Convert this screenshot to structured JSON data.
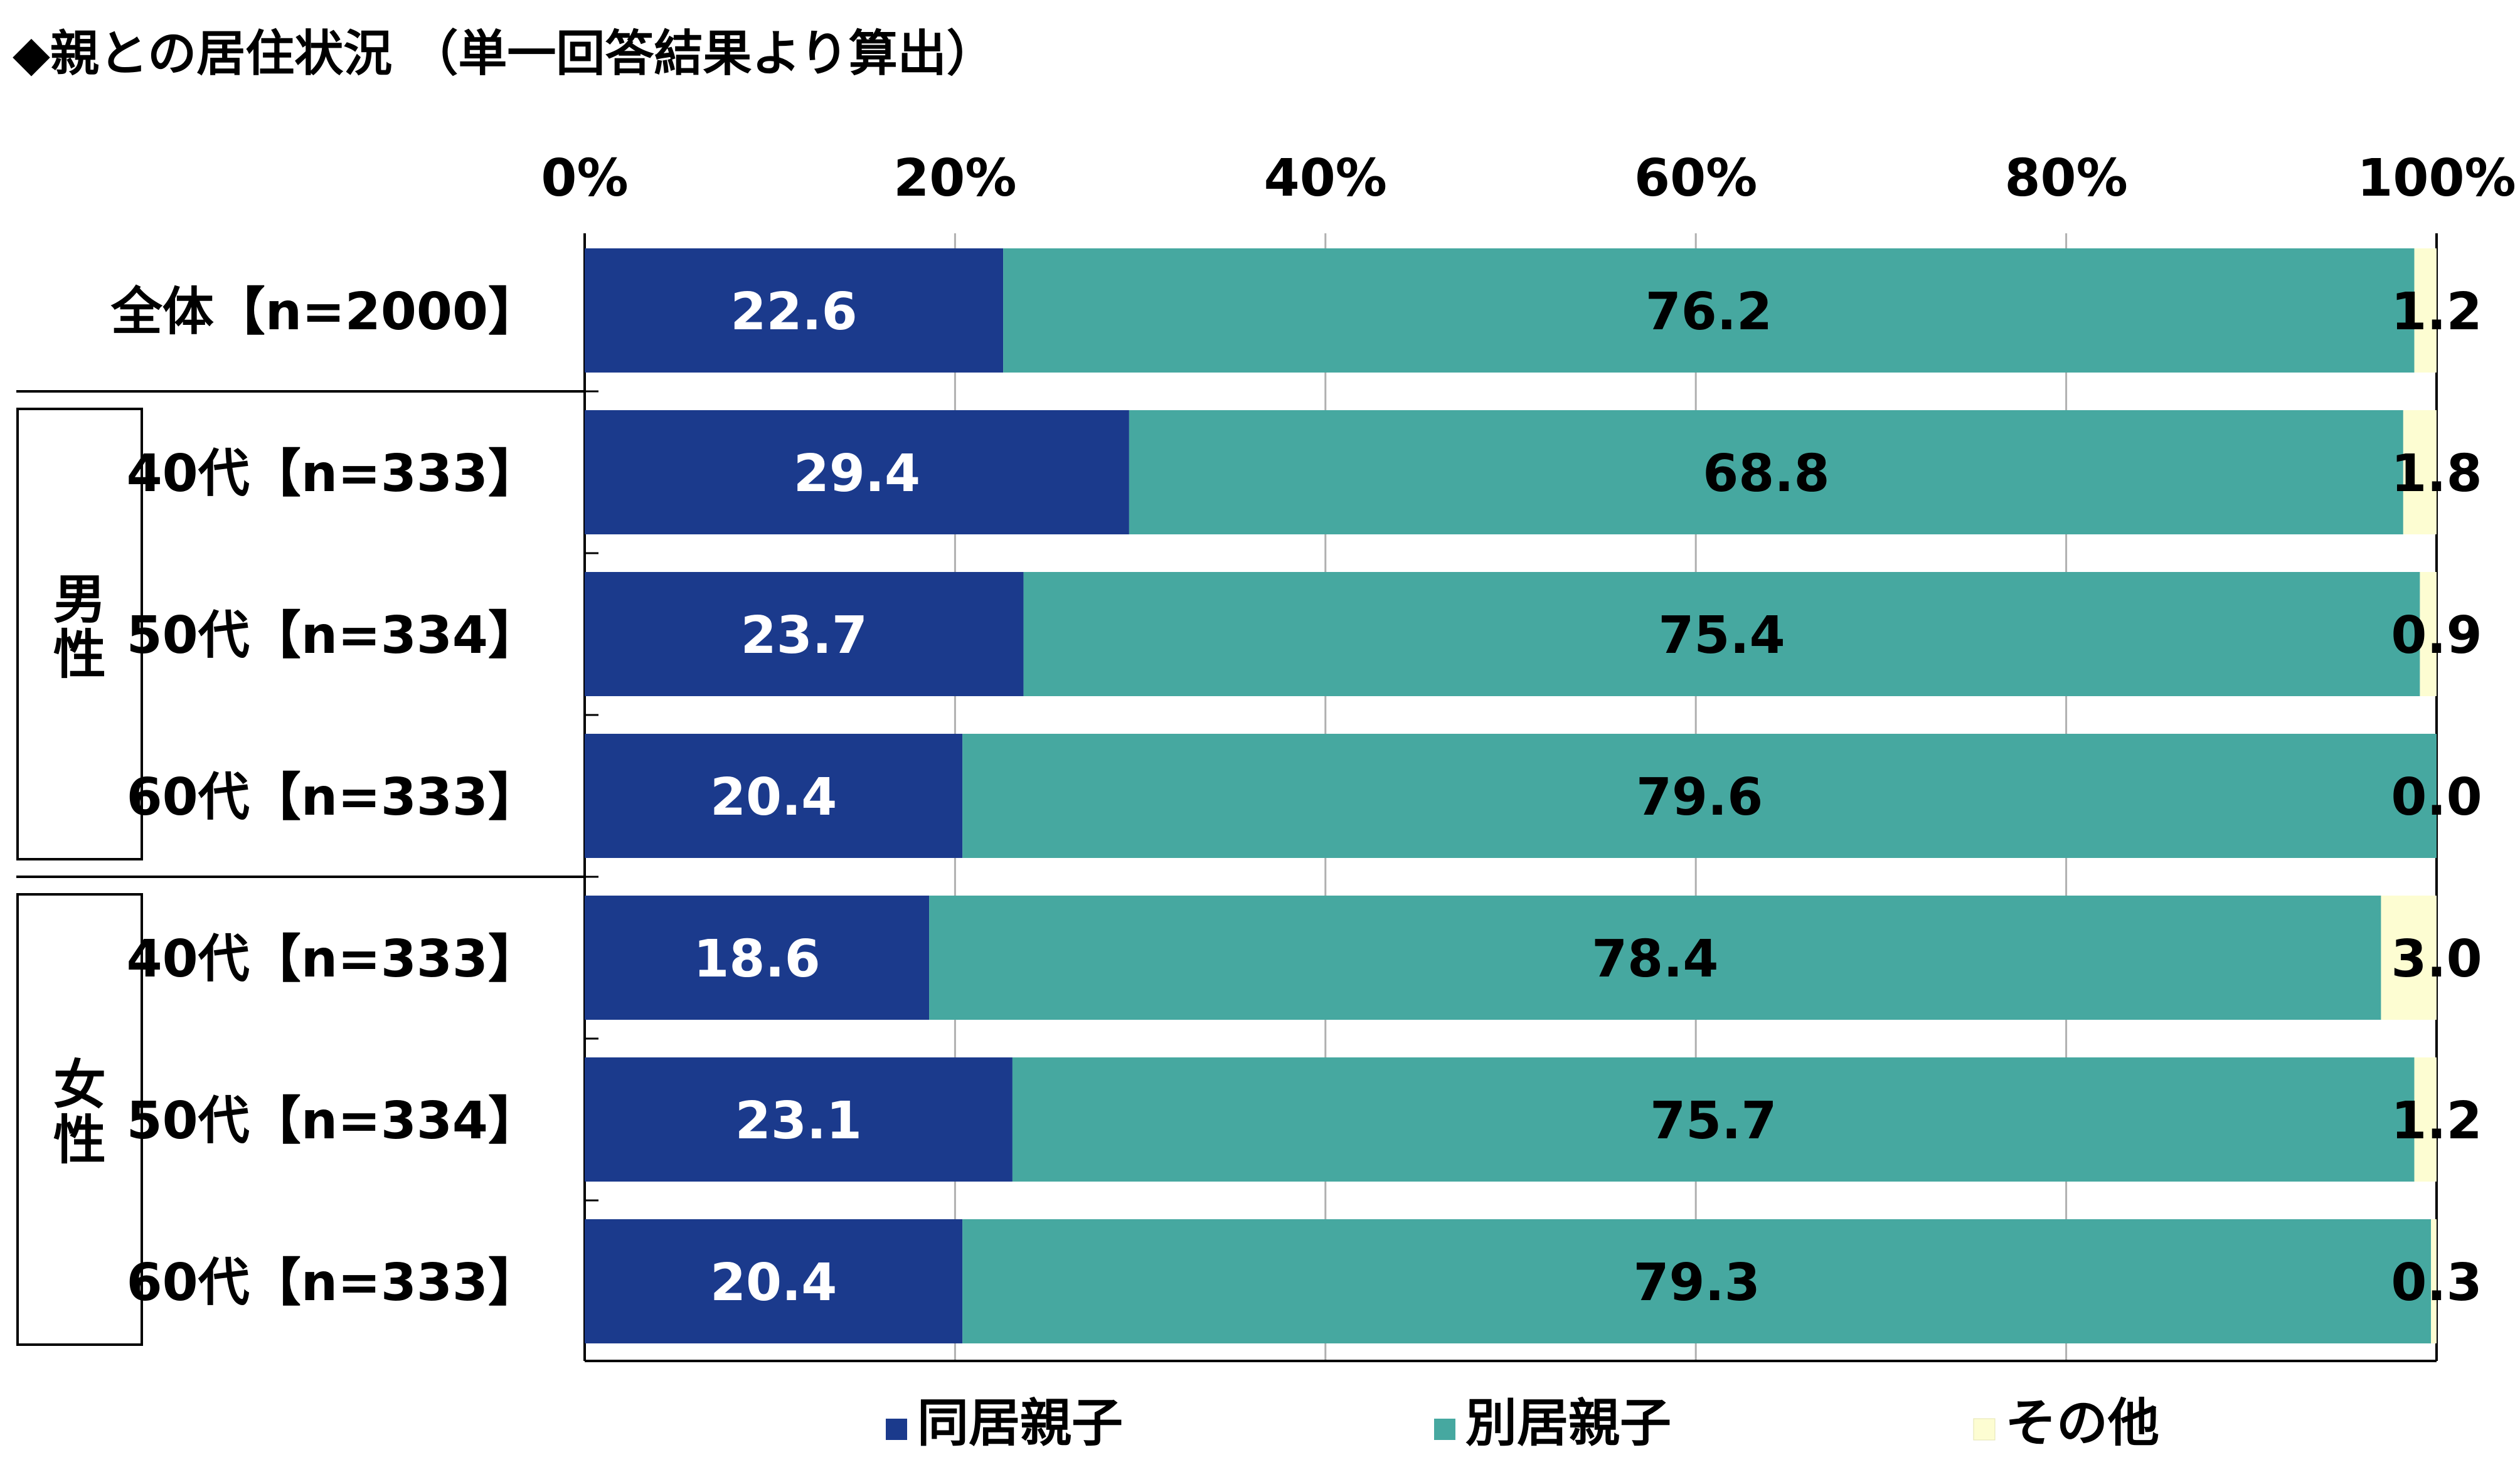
{
  "title": "◆親との居住状況 （単一回答結果より算出）",
  "chart_data": {
    "type": "bar",
    "stacked": true,
    "orientation": "horizontal",
    "xlim": [
      0,
      100
    ],
    "x_ticks": [
      "0%",
      "20%",
      "40%",
      "60%",
      "80%",
      "100%"
    ],
    "categories": [
      "全体【n=2000】",
      "40代【n=333】",
      "50代【n=334】",
      "60代【n=333】",
      "40代【n=333】",
      "50代【n=334】",
      "60代【n=333】"
    ],
    "groups": [
      {
        "label": "男性",
        "start": 1,
        "end": 3
      },
      {
        "label": "女性",
        "start": 4,
        "end": 6
      }
    ],
    "series": [
      {
        "name": "同居親子",
        "color": "#1b3a8c",
        "values": [
          22.6,
          29.4,
          23.7,
          20.4,
          18.6,
          23.1,
          20.4
        ],
        "labels": [
          "22.6",
          "29.4",
          "23.7",
          "20.4",
          "18.6",
          "23.1",
          "20.4"
        ]
      },
      {
        "name": "別居親子",
        "color": "#46a8a0",
        "values": [
          76.2,
          68.8,
          75.4,
          79.6,
          78.4,
          75.7,
          79.3
        ],
        "labels": [
          "76.2",
          "68.8",
          "75.4",
          "79.6",
          "78.4",
          "75.7",
          "79.3"
        ]
      },
      {
        "name": "その他",
        "color": "#fdfdd2",
        "values": [
          1.2,
          1.8,
          0.9,
          0.0,
          3.0,
          1.2,
          0.3
        ],
        "labels": [
          "1.2",
          "1.8",
          "0.9",
          "0.0",
          "3.0",
          "1.2",
          "0.3"
        ]
      }
    ],
    "legend_position": "bottom"
  }
}
